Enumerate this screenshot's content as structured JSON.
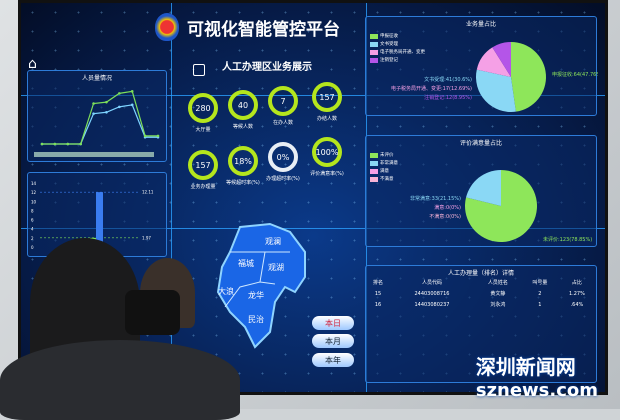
{
  "header": {
    "title": "可视化智能管控平台"
  },
  "center": {
    "title": "人工办理区业务展示",
    "rings": [
      {
        "value": "280",
        "label": "大厅量"
      },
      {
        "value": "40",
        "label": "等候人数"
      },
      {
        "value": "7",
        "label": "在办人数"
      },
      {
        "value": "157",
        "label": "办结人数"
      },
      {
        "value": "157",
        "label": "业务办理量"
      },
      {
        "value": "18%",
        "label": "等候超时率(%)"
      },
      {
        "value": "0%",
        "label": "办理超时率(%)"
      },
      {
        "value": "100%",
        "label": "评价满意率(%)"
      }
    ]
  },
  "map": {
    "districts": [
      "观澜",
      "福城",
      "观湖",
      "大浪",
      "龙华",
      "民治"
    ]
  },
  "period_buttons": [
    "本日",
    "本月",
    "本年"
  ],
  "chart_data": [
    {
      "type": "line",
      "title": "人员量情况",
      "series": [
        {
          "values": [
            0,
            0,
            0,
            0,
            45,
            47,
            55,
            58,
            10,
            10
          ],
          "color": "#7dd3ff"
        },
        {
          "values": [
            0,
            0,
            0,
            0,
            60,
            62,
            75,
            78,
            12,
            12
          ],
          "color": "#7ee05a"
        }
      ],
      "ylim": [
        0,
        80
      ]
    },
    {
      "type": "bar",
      "title": "",
      "values": [
        2,
        12
      ],
      "colors": [
        "#7ee05a",
        "#3a7cf0"
      ],
      "markers": [
        "12.11",
        "1.97"
      ],
      "ylim": [
        0,
        14
      ],
      "yticks": [
        0,
        2,
        4,
        6,
        8,
        10,
        12,
        14
      ]
    },
    {
      "type": "pie",
      "title": "业务量占比",
      "slices": [
        {
          "label": "申报征收:64(47.76%)",
          "value": 64,
          "color": "#8ee65a"
        },
        {
          "label": "文书受理:41(30.6%)",
          "value": 41,
          "color": "#8ad8f5"
        },
        {
          "label": "电子税务局开通、变更:17(12.69%)",
          "value": 17,
          "color": "#f5a0e6"
        },
        {
          "label": "注销登记:12(8.95%)",
          "value": 12,
          "color": "#b455e8"
        }
      ],
      "legend": [
        "申报征收",
        "文书受理",
        "电子税务局开通、变更",
        "注销登记"
      ]
    },
    {
      "type": "pie",
      "title": "评价满意量占比",
      "slices": [
        {
          "label": "未评价:123(78.85%)",
          "value": 123,
          "color": "#8ee65a"
        },
        {
          "label": "非常满意:33(21.15%)",
          "value": 33,
          "color": "#8ad8f5"
        },
        {
          "label": "满意:0(0%)",
          "value": 0,
          "color": "#f5a0e6"
        },
        {
          "label": "不满意:0(0%)",
          "value": 0,
          "color": "#f7b3d6"
        }
      ],
      "legend": [
        "未评价",
        "非常满意",
        "满意",
        "不满意"
      ]
    }
  ],
  "ranking": {
    "title": "人工办理量（排名）详情",
    "columns": [
      "排名",
      "人员代码",
      "人员姓名",
      "叫号量",
      "占比"
    ],
    "rows": [
      [
        "15",
        "24403008716",
        "黄文静",
        "2",
        "1.27%"
      ],
      [
        "16",
        "14403080237",
        "刘永鸿",
        "1",
        ".64%"
      ]
    ]
  },
  "watermark": {
    "cn": "深圳新闻网",
    "en": "sznews.com"
  }
}
